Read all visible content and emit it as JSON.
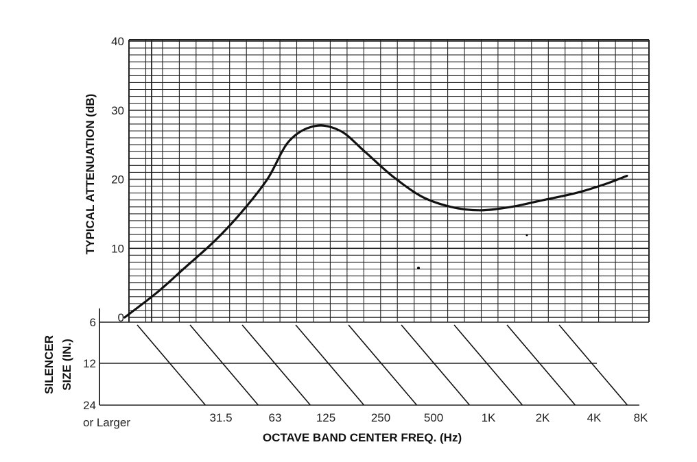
{
  "chart_data": {
    "type": "line",
    "ylabel": "TYPICAL ATTENUATION (dB)",
    "xlabel": "OCTAVE BAND CENTER FREQ. (Hz)",
    "ylim": [
      0,
      40
    ],
    "yticks": [
      "0",
      "10",
      "20",
      "30",
      "40"
    ],
    "grid": true,
    "x_scale": "log2",
    "series": [
      {
        "points": [
          {
            "x": 5,
            "y": 0
          },
          {
            "x": 8,
            "y": 3.5
          },
          {
            "x": 12,
            "y": 7
          },
          {
            "x": 19,
            "y": 11
          },
          {
            "x": 28,
            "y": 15
          },
          {
            "x": 42,
            "y": 20
          },
          {
            "x": 58,
            "y": 25.5
          },
          {
            "x": 85,
            "y": 27.7
          },
          {
            "x": 125,
            "y": 27
          },
          {
            "x": 180,
            "y": 24
          },
          {
            "x": 270,
            "y": 20.5
          },
          {
            "x": 420,
            "y": 17.5
          },
          {
            "x": 650,
            "y": 16
          },
          {
            "x": 1000,
            "y": 15.5
          },
          {
            "x": 1600,
            "y": 16
          },
          {
            "x": 2600,
            "y": 17
          },
          {
            "x": 4200,
            "y": 18
          },
          {
            "x": 6500,
            "y": 19.3
          },
          {
            "x": 9000,
            "y": 20.5
          }
        ]
      }
    ],
    "silencer_size": {
      "label": "SILENCER\nSIZE (IN.)",
      "rows": [
        "6",
        "12",
        "24"
      ],
      "last_row_suffix": "or Larger"
    },
    "frequency_labels": [
      "31.5",
      "63",
      "125",
      "250",
      "500",
      "1K",
      "2K",
      "4K",
      "8K"
    ]
  }
}
